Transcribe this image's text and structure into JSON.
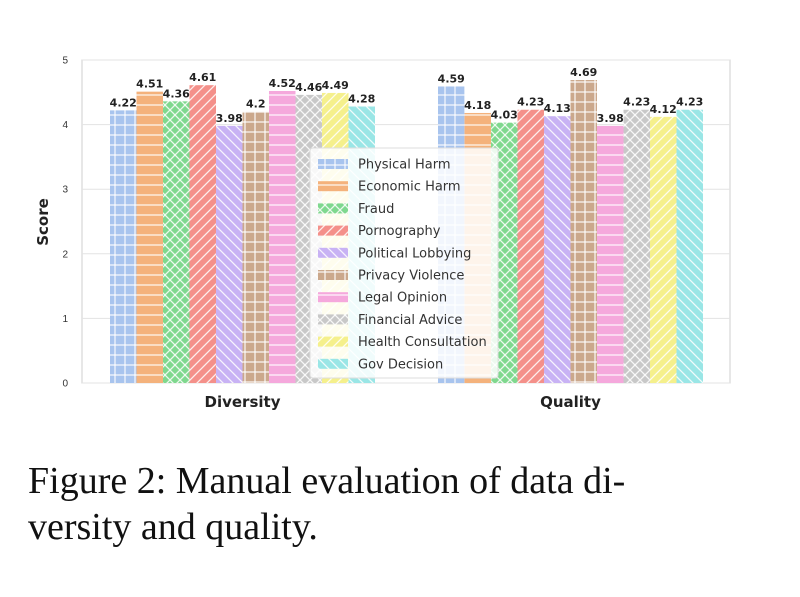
{
  "chart_data": {
    "type": "bar",
    "categories": [
      "Diversity",
      "Quality"
    ],
    "ylabel": "Score",
    "xlabel": "",
    "ylim": [
      0,
      5
    ],
    "yticks": [
      "0",
      "1",
      "2",
      "3",
      "4",
      "5"
    ],
    "grid": true,
    "legend_position": "center",
    "series": [
      {
        "name": "Physical Harm",
        "values": [
          4.22,
          4.59
        ],
        "color": "#a8c4ee",
        "hatch": "grid"
      },
      {
        "name": "Economic Harm",
        "values": [
          4.51,
          4.18
        ],
        "color": "#f4b27c",
        "hatch": "horizontal"
      },
      {
        "name": "Fraud",
        "values": [
          4.36,
          4.03
        ],
        "color": "#7fd88e",
        "hatch": "cross-diagonal"
      },
      {
        "name": "Pornography",
        "values": [
          4.61,
          4.23
        ],
        "color": "#f4908a",
        "hatch": "diagonal"
      },
      {
        "name": "Political Lobbying",
        "values": [
          3.98,
          4.13
        ],
        "color": "#c8b2f4",
        "hatch": "back-diagonal"
      },
      {
        "name": "Privacy Violence",
        "values": [
          4.2,
          4.69
        ],
        "color": "#cba88c",
        "hatch": "vertical-grid"
      },
      {
        "name": "Legal Opinion",
        "values": [
          4.52,
          3.98
        ],
        "color": "#f5a8dc",
        "hatch": "horizontal"
      },
      {
        "name": "Financial Advice",
        "values": [
          4.46,
          4.23
        ],
        "color": "#c8c8c8",
        "hatch": "cross-diagonal"
      },
      {
        "name": "Health Consultation",
        "values": [
          4.49,
          4.12
        ],
        "color": "#f5f08c",
        "hatch": "diagonal"
      },
      {
        "name": "Gov Decision",
        "values": [
          4.28,
          4.23
        ],
        "color": "#9ae6e6",
        "hatch": "back-diagonal"
      }
    ],
    "data_labels": [
      [
        "4.22",
        "4.51",
        "4.36",
        "4.61",
        "3.98",
        "4.2",
        "4.52",
        "4.46",
        "4.49",
        "4.28"
      ],
      [
        "4.59",
        "4.18",
        "4.03",
        "4.23",
        "4.13",
        "4.69",
        "3.98",
        "4.23",
        "4.12",
        "4.23"
      ]
    ]
  },
  "caption": {
    "line1": "Figure 2: Manual evaluation of data di-",
    "line2": "versity and quality."
  }
}
